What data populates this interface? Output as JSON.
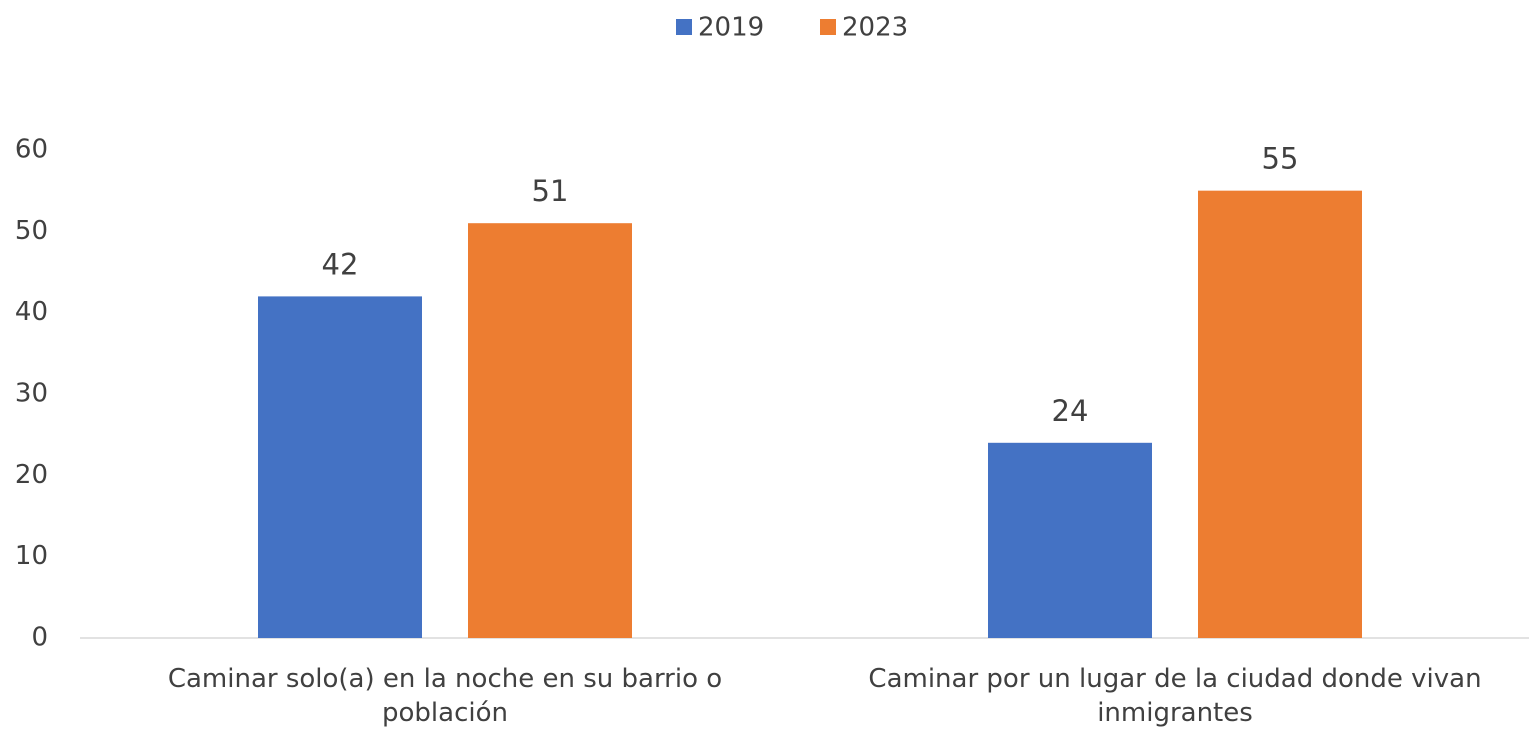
{
  "chart_data": {
    "type": "bar",
    "categories": [
      "Caminar solo(a) en la noche en su barrio o población",
      "Caminar por un lugar de la ciudad donde vivan inmigrantes"
    ],
    "series": [
      {
        "name": "2019",
        "color": "#4472c4",
        "values": [
          42,
          24
        ]
      },
      {
        "name": "2023",
        "color": "#ed7d31",
        "values": [
          51,
          55
        ]
      }
    ],
    "ylim": [
      0,
      60
    ],
    "yticks": [
      0,
      10,
      20,
      30,
      40,
      50,
      60
    ],
    "grid": false,
    "legend": "top"
  }
}
